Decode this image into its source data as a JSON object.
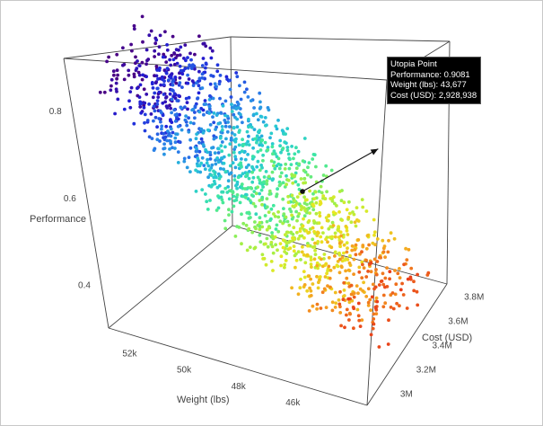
{
  "chart_data": {
    "type": "scatter",
    "subtype": "scatter3d",
    "title": "",
    "axes": {
      "x": {
        "label": "Weight (lbs)",
        "ticks": [
          46000,
          48000,
          50000,
          52000
        ],
        "tick_labels": [
          "46k",
          "48k",
          "50k",
          "52k"
        ],
        "range": [
          44000,
          53500
        ]
      },
      "y": {
        "label": "Cost (USD)",
        "ticks": [
          3000000,
          3200000,
          3400000,
          3600000,
          3800000
        ],
        "tick_labels": [
          "3M",
          "3.2M",
          "3.4M",
          "3.6M",
          "3.8M"
        ],
        "range": [
          2900000,
          3900000
        ]
      },
      "z": {
        "label": "Performance",
        "ticks": [
          0.4,
          0.6,
          0.8
        ],
        "tick_labels": [
          "0.4",
          "0.6",
          "0.8"
        ],
        "range": [
          0.3,
          0.92
        ]
      }
    },
    "colorscale": [
      "#4b0082",
      "#1f1fd8",
      "#2a7fe8",
      "#26c6d8",
      "#3fe8a0",
      "#9cf04a",
      "#e8e820",
      "#f5a020",
      "#e83a1a"
    ],
    "point_count": 1500,
    "grid": false,
    "legend": "none",
    "annotation": {
      "title": "Utopia Point",
      "lines": [
        "Performance: 0.9081",
        "Weight (lbs): 43,677",
        "Cost (USD): 2,928,938"
      ],
      "point": {
        "performance": 0.9081,
        "weight": 43677,
        "cost": 2928938
      }
    }
  }
}
